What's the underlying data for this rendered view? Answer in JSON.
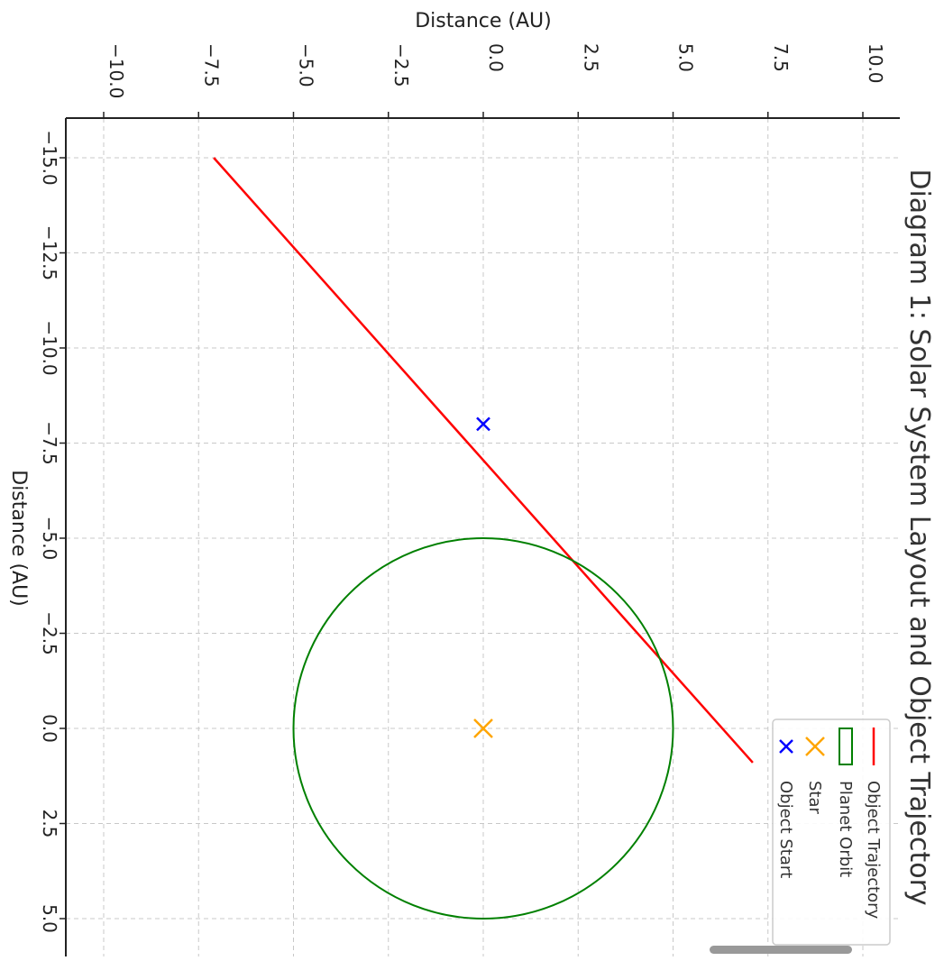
{
  "chart_data": {
    "type": "line",
    "title": "Diagram 1: Solar System Layout and Object Trajectory",
    "xlabel": "Distance (AU)",
    "ylabel": "Distance (AU)",
    "xlim": [
      -11,
      11
    ],
    "ylim": [
      -16,
      6
    ],
    "xticks": [
      -10.0,
      -7.5,
      -5.0,
      -2.5,
      0.0,
      2.5,
      5.0,
      7.5,
      10.0
    ],
    "yticks": [
      -15.0,
      -12.5,
      -10.0,
      -7.5,
      -5.0,
      -2.5,
      0.0,
      2.5,
      5.0
    ],
    "xtick_labels": [
      "−10.0",
      "−7.5",
      "−5.0",
      "−2.5",
      "0.0",
      "2.5",
      "5.0",
      "7.5",
      "10.0"
    ],
    "ytick_labels": [
      "−15.0",
      "−12.5",
      "−10.0",
      "−7.5",
      "−5.0",
      "−2.5",
      "0.0",
      "2.5",
      "5.0"
    ],
    "grid": true,
    "rotated": "90 degrees clockwise",
    "series": [
      {
        "name": "Object Trajectory",
        "kind": "line",
        "color": "#ff0000",
        "x": [
          -7.1,
          7.1
        ],
        "y": [
          -15.0,
          0.9
        ]
      },
      {
        "name": "Planet Orbit",
        "kind": "circle",
        "color": "#008000",
        "center": [
          0,
          0
        ],
        "radius": 5
      },
      {
        "name": "Star",
        "kind": "marker",
        "marker": "x",
        "color": "#ffa500",
        "x": 0,
        "y": 0
      },
      {
        "name": "Object Start",
        "kind": "marker",
        "marker": "x",
        "color": "#0000ff",
        "x": 0,
        "y": -8.0
      }
    ],
    "legend": {
      "placement": "top-right",
      "entries": [
        "Object Trajectory",
        "Planet Orbit",
        "Star",
        "Object Start"
      ]
    }
  }
}
